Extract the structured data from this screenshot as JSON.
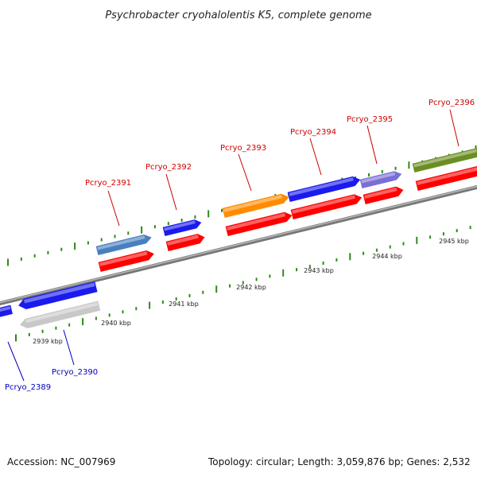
{
  "title": "Psychrobacter cryohalolentis K5, complete genome",
  "footer": {
    "accession": "Accession: NC_007969",
    "summary": "Topology: circular; Length: 3,059,876 bp; Genes: 2,532"
  },
  "colors": {
    "backbone": "#8a8a8a",
    "tick": "#2e8b1a",
    "label_forward": "#cc0000",
    "label_reverse": "#0000bb",
    "cds": "#ff0000"
  },
  "tick_labels": [
    "2939 kbp",
    "2940 kbp",
    "2941 kbp",
    "2942 kbp",
    "2943 kbp",
    "2944 kbp",
    "2945 kbp"
  ],
  "genes": [
    {
      "label": "Pcryo_2389",
      "strand": "reverse",
      "gene_color": "#1a1aee"
    },
    {
      "label": "Pcryo_2390",
      "strand": "reverse",
      "gene_color": "#1a1aee"
    },
    {
      "label": "",
      "strand": "reverse",
      "gene_color": "#c8c8c8"
    },
    {
      "label": "Pcryo_2391",
      "strand": "forward",
      "gene_color": "#4a7fbf"
    },
    {
      "label": "Pcryo_2392",
      "strand": "forward",
      "gene_color": "#1a1aee"
    },
    {
      "label": "Pcryo_2393",
      "strand": "forward",
      "gene_color": "#ff8c00"
    },
    {
      "label": "Pcryo_2394",
      "strand": "forward",
      "gene_color": "#1a1aee"
    },
    {
      "label": "Pcryo_2395",
      "strand": "forward",
      "gene_color": "#7a6fd6"
    },
    {
      "label": "Pcryo_2396",
      "strand": "forward",
      "gene_color": "#6b8e23"
    }
  ]
}
